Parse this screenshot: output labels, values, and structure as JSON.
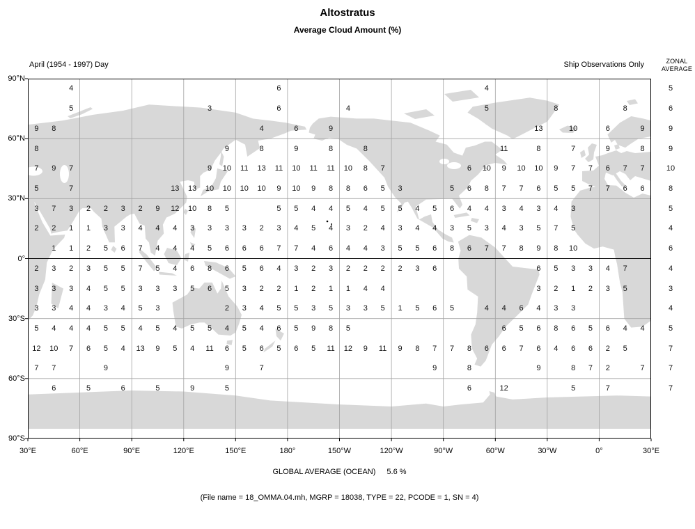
{
  "header": {
    "title": "Altostratus",
    "subtitle": "Average Cloud Amount (%)",
    "period_label": "April (1954 - 1997) Day",
    "source_label": "Ship Observations Only",
    "zonal_header_line1": "ZONAL",
    "zonal_header_line2": "AVERAGE"
  },
  "footer": {
    "global_average_label": "GLOBAL AVERAGE (OCEAN)",
    "global_average_value": "5.6 %",
    "file_info": "(File name = 18_OMMA.04.mh, MGRP = 18038, TYPE = 22, PCODE = 1, SN = 4)"
  },
  "colors": {
    "land": "#d8d8d8",
    "grid": "#a3a3a3",
    "frame": "#000000",
    "text": "#000000"
  },
  "chart_data": {
    "type": "heatmap",
    "title": "Altostratus",
    "subtitle": "Average Cloud Amount (%)",
    "period": "April (1954 - 1997) Day",
    "source": "Ship Observations Only",
    "units": "% cloud amount per 10x10 degree ocean box",
    "cell_degrees": 10,
    "lat_ticks": [
      "90°N",
      "60°N",
      "30°N",
      "0°",
      "30°S",
      "60°S",
      "90°S"
    ],
    "lon_ticks": [
      "30°E",
      "60°E",
      "90°E",
      "120°E",
      "150°E",
      "180°",
      "150°W",
      "120°W",
      "90°W",
      "60°W",
      "30°W",
      "0°",
      "30°E"
    ],
    "grid": [
      [
        null,
        null,
        4,
        null,
        null,
        null,
        null,
        null,
        null,
        null,
        null,
        null,
        null,
        null,
        6,
        null,
        null,
        null,
        null,
        null,
        null,
        null,
        null,
        null,
        null,
        null,
        4,
        null,
        null,
        null,
        null,
        null,
        null,
        null,
        null,
        null
      ],
      [
        null,
        null,
        5,
        null,
        null,
        null,
        null,
        null,
        null,
        null,
        3,
        null,
        null,
        null,
        6,
        null,
        null,
        null,
        4,
        null,
        null,
        null,
        null,
        null,
        null,
        null,
        5,
        null,
        null,
        null,
        8,
        null,
        null,
        null,
        8,
        null
      ],
      [
        9,
        8,
        null,
        null,
        null,
        null,
        null,
        null,
        null,
        null,
        null,
        null,
        null,
        4,
        null,
        6,
        null,
        9,
        null,
        null,
        null,
        null,
        null,
        null,
        null,
        null,
        null,
        null,
        null,
        13,
        null,
        10,
        null,
        6,
        null,
        9
      ],
      [
        8,
        null,
        null,
        null,
        null,
        null,
        null,
        null,
        null,
        null,
        null,
        9,
        null,
        8,
        null,
        9,
        null,
        8,
        null,
        8,
        null,
        null,
        null,
        null,
        null,
        null,
        null,
        11,
        null,
        8,
        null,
        7,
        null,
        9,
        null,
        8
      ],
      [
        7,
        9,
        7,
        null,
        null,
        null,
        null,
        null,
        null,
        null,
        9,
        10,
        11,
        13,
        11,
        10,
        11,
        11,
        10,
        8,
        7,
        null,
        null,
        null,
        null,
        6,
        10,
        9,
        10,
        10,
        9,
        7,
        7,
        6,
        7,
        7
      ],
      [
        5,
        null,
        7,
        null,
        null,
        null,
        null,
        null,
        13,
        13,
        10,
        10,
        10,
        10,
        9,
        10,
        9,
        8,
        8,
        6,
        5,
        3,
        null,
        null,
        5,
        6,
        8,
        7,
        7,
        6,
        5,
        5,
        7,
        7,
        6,
        6
      ],
      [
        3,
        7,
        3,
        2,
        2,
        3,
        2,
        9,
        12,
        10,
        8,
        5,
        null,
        null,
        5,
        5,
        4,
        4,
        5,
        4,
        5,
        5,
        4,
        5,
        6,
        4,
        4,
        3,
        4,
        3,
        4,
        3,
        null,
        null,
        null,
        null
      ],
      [
        2,
        2,
        1,
        1,
        3,
        3,
        4,
        4,
        4,
        3,
        3,
        3,
        3,
        2,
        3,
        4,
        5,
        4,
        3,
        2,
        4,
        3,
        4,
        4,
        3,
        5,
        3,
        4,
        3,
        5,
        7,
        5,
        null,
        null,
        null,
        null
      ],
      [
        null,
        1,
        1,
        2,
        5,
        6,
        7,
        4,
        4,
        4,
        5,
        6,
        6,
        6,
        7,
        7,
        4,
        6,
        4,
        4,
        3,
        5,
        5,
        6,
        8,
        6,
        7,
        7,
        8,
        9,
        8,
        10,
        null,
        null,
        null,
        null
      ],
      [
        2,
        3,
        2,
        3,
        5,
        5,
        7,
        5,
        4,
        6,
        8,
        6,
        5,
        6,
        4,
        3,
        2,
        3,
        2,
        2,
        2,
        2,
        3,
        6,
        null,
        null,
        null,
        null,
        null,
        6,
        5,
        3,
        3,
        4,
        7,
        null
      ],
      [
        3,
        3,
        3,
        4,
        5,
        5,
        3,
        3,
        3,
        5,
        6,
        5,
        3,
        2,
        2,
        1,
        2,
        1,
        1,
        4,
        4,
        null,
        null,
        null,
        null,
        null,
        null,
        null,
        null,
        3,
        2,
        1,
        2,
        3,
        5,
        null
      ],
      [
        3,
        3,
        4,
        4,
        3,
        4,
        5,
        3,
        null,
        null,
        null,
        2,
        3,
        4,
        5,
        5,
        3,
        5,
        3,
        3,
        5,
        1,
        5,
        6,
        5,
        null,
        4,
        4,
        6,
        4,
        3,
        3,
        null,
        null,
        null,
        null
      ],
      [
        5,
        4,
        4,
        4,
        5,
        5,
        4,
        5,
        4,
        5,
        5,
        4,
        5,
        4,
        6,
        5,
        9,
        8,
        5,
        null,
        null,
        null,
        null,
        null,
        null,
        null,
        null,
        6,
        5,
        6,
        8,
        6,
        5,
        6,
        4,
        4
      ],
      [
        12,
        10,
        7,
        6,
        5,
        4,
        13,
        9,
        5,
        4,
        11,
        6,
        5,
        6,
        5,
        6,
        5,
        11,
        12,
        9,
        11,
        9,
        8,
        7,
        7,
        8,
        6,
        6,
        7,
        6,
        4,
        6,
        6,
        2,
        5,
        null
      ],
      [
        7,
        7,
        null,
        null,
        9,
        null,
        null,
        null,
        null,
        null,
        null,
        9,
        null,
        7,
        null,
        null,
        null,
        null,
        null,
        null,
        null,
        null,
        null,
        9,
        null,
        8,
        null,
        null,
        null,
        9,
        null,
        8,
        7,
        2,
        null,
        7
      ],
      [
        null,
        6,
        null,
        5,
        null,
        6,
        null,
        5,
        null,
        9,
        null,
        5,
        null,
        null,
        null,
        null,
        null,
        null,
        null,
        null,
        null,
        null,
        null,
        null,
        null,
        6,
        null,
        12,
        null,
        null,
        null,
        5,
        null,
        7,
        null,
        null
      ]
    ],
    "zonal_averages": [
      5,
      6,
      9,
      9,
      10,
      8,
      5,
      4,
      6,
      4,
      3,
      4,
      5,
      7,
      7,
      7
    ],
    "global_average_ocean": "5.6 %",
    "layout": {
      "legend": "none",
      "grid_lines": "every 30 degrees",
      "top_latitude": "90N",
      "left_longitude": "30E"
    }
  }
}
